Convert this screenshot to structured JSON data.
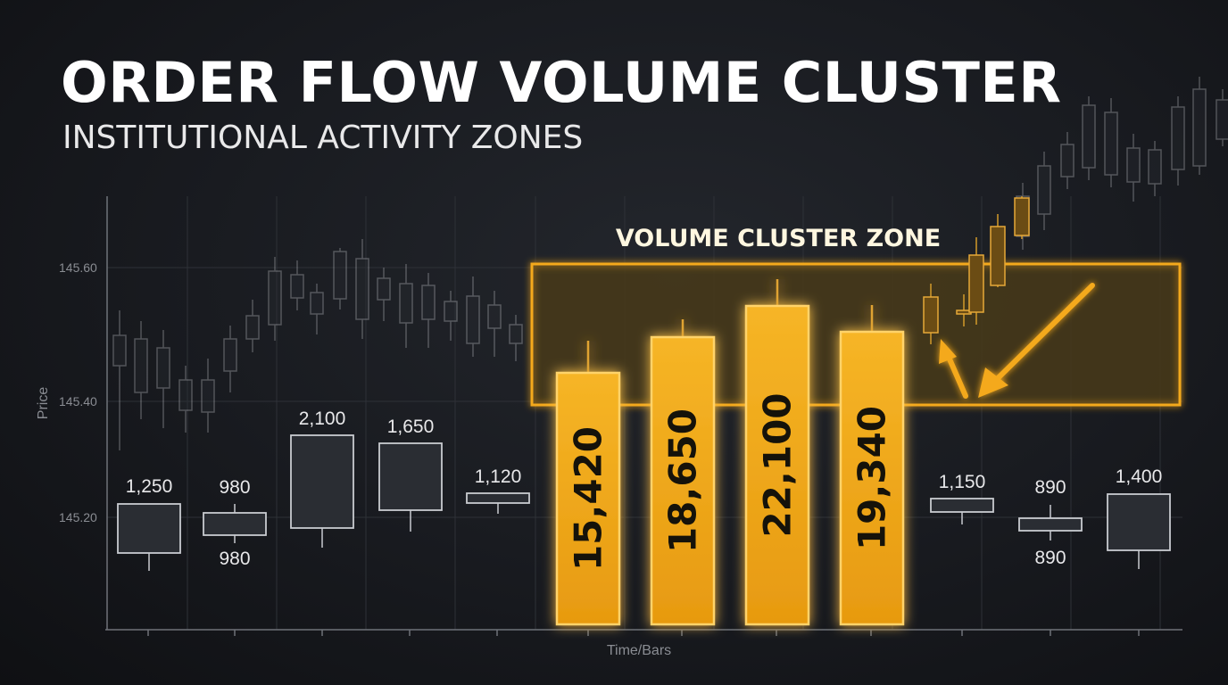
{
  "title": "ORDER FLOW VOLUME CLUSTER",
  "subtitle": "INSTITUTIONAL ACTIVITY ZONES",
  "chart_data": {
    "type": "candlestick",
    "xlabel": "Time/Bars",
    "ylabel": "Price",
    "yticks": [
      "145.60",
      "145.40",
      "145.20"
    ],
    "zone_label": "VOLUME CLUSTER ZONE",
    "volume_candles": [
      {
        "volume": 1250,
        "label": "1,250",
        "cluster": false
      },
      {
        "volume": 980,
        "label": "980",
        "cluster": false,
        "lower_label": "980"
      },
      {
        "volume": 2100,
        "label": "2,100",
        "cluster": false
      },
      {
        "volume": 1650,
        "label": "1,650",
        "cluster": false
      },
      {
        "volume": 1120,
        "label": "1,120",
        "cluster": false
      },
      {
        "volume": 15420,
        "label": "15,420",
        "cluster": true
      },
      {
        "volume": 18650,
        "label": "18,650",
        "cluster": true
      },
      {
        "volume": 22100,
        "label": "22,100",
        "cluster": true
      },
      {
        "volume": 19340,
        "label": "19,340",
        "cluster": true
      },
      {
        "volume": 1150,
        "label": "1,150",
        "cluster": false
      },
      {
        "volume": 890,
        "label": "890",
        "cluster": false,
        "lower_label": "890"
      },
      {
        "volume": 1400,
        "label": "1,400",
        "cluster": false
      }
    ],
    "colors": {
      "cluster_fill": "#f3a818",
      "cluster_edge": "#ffd36a",
      "zone_edge": "#f4a91c",
      "zone_fill": "#4a3a16",
      "candle_edge": "#c9cbd0",
      "candle_fill": "#2a2d33",
      "grid": "#2e3137",
      "axis": "#6f7279"
    }
  }
}
